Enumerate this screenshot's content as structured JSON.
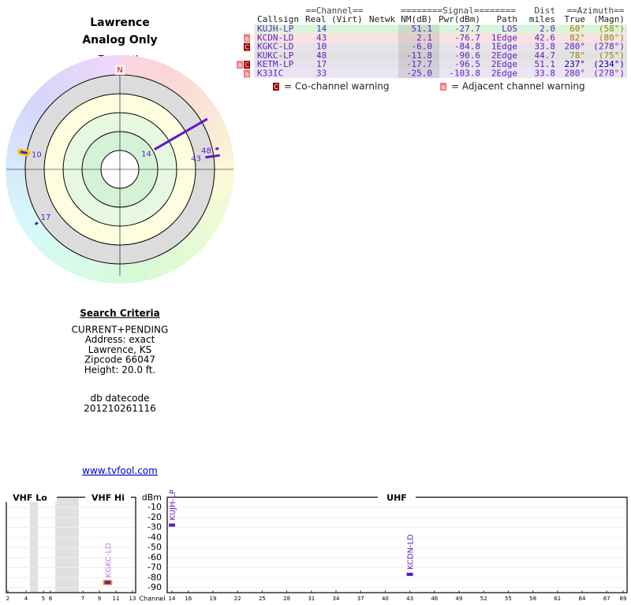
{
  "header": {
    "title": "Lawrence",
    "subtitle": "Analog Only"
  },
  "polar": {
    "north_label": "TrueNorth",
    "north": "N",
    "stations": [
      {
        "label": "14",
        "azimuth": 60,
        "nm": 51.1,
        "color": "#5a1ac8"
      },
      {
        "label": "43",
        "azimuth": 82,
        "nm": 2.1,
        "color": "#5a1ac8"
      },
      {
        "label": "10",
        "azimuth": 280,
        "nm": -6.0,
        "color": "#5a1ac8",
        "outline": "#f5c518"
      },
      {
        "label": "48",
        "azimuth": 78,
        "nm": -11.8,
        "color": "#5a1ac8"
      },
      {
        "label": "17",
        "azimuth": 237,
        "nm": -17.7,
        "color": "#5a1ac8"
      }
    ]
  },
  "table": {
    "group_headers": [
      "==Channel==",
      "========Signal========",
      "Dist",
      "==Azimuth=="
    ],
    "headers": [
      "Callsign",
      "Real",
      "(Virt)",
      "Netwk",
      "NM(dB)",
      "Pwr(dBm)",
      "Path",
      "miles",
      "True",
      "(Magn)"
    ],
    "rows": [
      {
        "callsign": "KUJH-LP",
        "real": "14",
        "nm": "51.1",
        "pwr": "-27.7",
        "path": "LOS",
        "dist": "2.0",
        "true": "60°",
        "magn": "(58°)",
        "bg": "#d9f5d9",
        "az_color": "#a08000"
      },
      {
        "flags": [
          "a"
        ],
        "callsign": "KCDN-LD",
        "real": "43",
        "nm": "2.1",
        "pwr": "-76.7",
        "path": "1Edge",
        "dist": "42.6",
        "true": "82°",
        "magn": "(80°)",
        "bg": "#fbe1e1",
        "az_color": "#a08000"
      },
      {
        "flags": [
          "C"
        ],
        "callsign": "KGKC-LD",
        "real": "10",
        "nm": "-6.0",
        "pwr": "-84.8",
        "path": "1Edge",
        "dist": "33.8",
        "true": "280°",
        "magn": "(278°)",
        "bg": "#e4e4ea",
        "az_color": "#6020c0"
      },
      {
        "callsign": "KUKC-LP",
        "real": "48",
        "nm": "-11.8",
        "pwr": "-90.6",
        "path": "2Edge",
        "dist": "44.7",
        "true": "78°",
        "magn": "(75°)",
        "bg": "#e2e2e2",
        "az_color": "#a08000"
      },
      {
        "flags": [
          "a",
          "C"
        ],
        "callsign": "KETM-LP",
        "real": "17",
        "nm": "-17.7",
        "pwr": "-96.5",
        "path": "2Edge",
        "dist": "51.1",
        "true": "237°",
        "magn": "(234°)",
        "bg": "#e8e2ee",
        "az_color": "#0000a0"
      },
      {
        "flags": [
          "a"
        ],
        "callsign": "K33IC",
        "real": "33",
        "nm": "-25.0",
        "pwr": "-103.8",
        "path": "2Edge",
        "dist": "33.8",
        "true": "280°",
        "magn": "(278°)",
        "bg": "#e9e5f3",
        "az_color": "#6020c0"
      }
    ],
    "legend": [
      {
        "flag": "C",
        "text": "= Co-channel warning"
      },
      {
        "flag": "a",
        "text": "= Adjacent channel warning"
      }
    ]
  },
  "search": {
    "title": "Search Criteria",
    "lines": [
      "CURRENT+PENDING",
      "Address: exact",
      "Lawrence, KS",
      "Zipcode 66047",
      "Height: 20.0 ft."
    ],
    "datecode_label": "db datecode",
    "datecode": "201210261116",
    "link": "www.tvfool.com"
  },
  "spectrum": {
    "bands": [
      "VHF Lo",
      "VHF Hi",
      "UHF"
    ],
    "unit": "dBm",
    "x_label": "Channel",
    "ylim": [
      0,
      -95
    ],
    "yticks": [
      -10,
      -20,
      -30,
      -40,
      -50,
      -60,
      -70,
      -80,
      -90
    ],
    "vhf_ticks": [
      2,
      4,
      5,
      6,
      7,
      9,
      11,
      13
    ],
    "uhf_xlim": [
      14,
      69
    ],
    "uhf_ticks": [
      14,
      16,
      19,
      22,
      25,
      28,
      31,
      34,
      37,
      40,
      43,
      46,
      49,
      52,
      55,
      58,
      61,
      64,
      67,
      69
    ],
    "stations": [
      {
        "callsign": "KUJH-LP",
        "channel": 14,
        "pwr": -27.7,
        "color": "#5a1ac8"
      },
      {
        "callsign": "KCDN-LD",
        "channel": 43,
        "pwr": -76.7,
        "color": "#5a1ac8"
      },
      {
        "callsign": "KGKC-LD",
        "channel": 10,
        "pwr": -84.8,
        "color": "#b080e0",
        "outline": "#f5a623"
      }
    ]
  }
}
